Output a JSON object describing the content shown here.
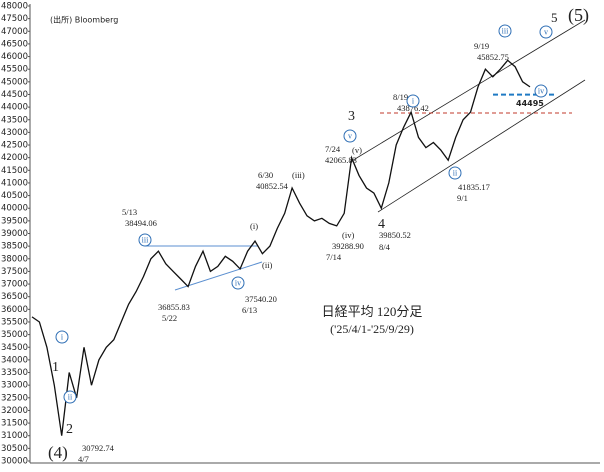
{
  "chart_data": {
    "type": "line",
    "title": "日経平均 120分足",
    "subtitle": "('25/4/1-'25/9/29)",
    "source": "(出所) Bloomberg",
    "color": "#111111",
    "values": [
      35700,
      35500,
      34500,
      33000,
      31000,
      33500,
      32500,
      34500,
      33000,
      34000,
      34500,
      34800,
      35500,
      36200,
      36700,
      37300,
      38000,
      38300,
      37800,
      37500,
      37200,
      36900,
      37700,
      38300,
      37500,
      37700,
      38100,
      37900,
      37600,
      38300,
      38700,
      38200,
      38500,
      39200,
      39800,
      40800,
      40200,
      39700,
      39500,
      39600,
      39400,
      39300,
      39800,
      42000,
      41300,
      40800,
      40600,
      40000,
      41000,
      42500,
      43200,
      43800,
      42800,
      42400,
      42600,
      42300,
      41900,
      42800,
      43500,
      43800,
      44800,
      45500,
      45200,
      45500,
      45850,
      45600,
      45000,
      44800
    ],
    "ylim": [
      30000,
      48000
    ],
    "yticks": [
      30000,
      30500,
      31000,
      31500,
      32000,
      32500,
      33000,
      33500,
      34000,
      34500,
      35000,
      35500,
      36000,
      36500,
      37000,
      37500,
      38000,
      38500,
      39000,
      39500,
      40000,
      40500,
      41000,
      41500,
      42000,
      42500,
      43000,
      43500,
      44000,
      44500,
      45000,
      45500,
      46000,
      46500,
      47000,
      47500,
      48000
    ],
    "reference_line": 44495,
    "reference_color": "#1f7ac4",
    "resistance_color": "#c0392b",
    "annotations": [
      {
        "text": "i",
        "circled": true
      },
      {
        "text": "ii",
        "circled": true
      },
      {
        "text": "1"
      },
      {
        "text": "2"
      },
      {
        "text": "(4)"
      },
      {
        "text": "30792.74"
      },
      {
        "text": "4/7"
      },
      {
        "text": "iii",
        "circled": true
      },
      {
        "text": "5/13"
      },
      {
        "text": "38494.06"
      },
      {
        "text": "36855.83"
      },
      {
        "text": "5/22"
      },
      {
        "text": "(i)"
      },
      {
        "text": "(ii)"
      },
      {
        "text": "iv",
        "circled": true
      },
      {
        "text": "37540.20"
      },
      {
        "text": "6/13"
      },
      {
        "text": "6/30"
      },
      {
        "text": "40852.54"
      },
      {
        "text": "(iii)"
      },
      {
        "text": "(iv)"
      },
      {
        "text": "39288.90"
      },
      {
        "text": "7/14"
      },
      {
        "text": "7/24"
      },
      {
        "text": "42065.83"
      },
      {
        "text": "(v)"
      },
      {
        "text": "v",
        "circled": true
      },
      {
        "text": "3"
      },
      {
        "text": "4"
      },
      {
        "text": "39850.52"
      },
      {
        "text": "8/4"
      },
      {
        "text": "8/19"
      },
      {
        "text": "43876.42"
      },
      {
        "text": "i",
        "circled": true
      },
      {
        "text": "ii",
        "circled": true
      },
      {
        "text": "41835.17"
      },
      {
        "text": "9/1"
      },
      {
        "text": "9/19"
      },
      {
        "text": "45852.75"
      },
      {
        "text": "iii",
        "circled": true
      },
      {
        "text": "iv",
        "circled": true
      },
      {
        "text": "v",
        "circled": true
      },
      {
        "text": "5"
      },
      {
        "text": "(5)"
      }
    ]
  }
}
